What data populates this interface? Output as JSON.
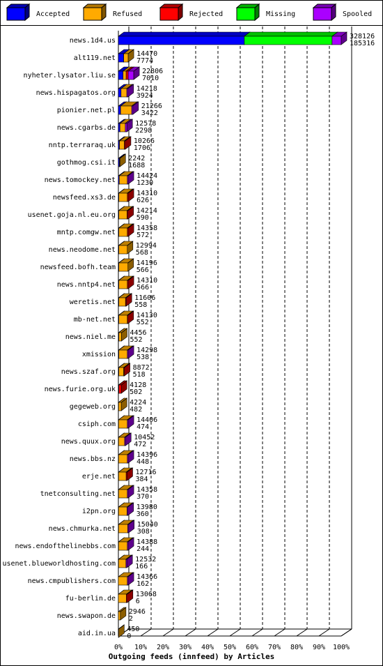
{
  "chart_data": {
    "type": "bar",
    "orientation": "horizontal",
    "stacked": true,
    "title": "Outgoing feeds (innfeed) by Articles",
    "categories": [
      "news.1d4.us",
      "alt119.net",
      "nyheter.lysator.liu.se",
      "news.hispagatos.org",
      "pionier.net.pl",
      "news.cgarbs.de",
      "nntp.terraraq.uk",
      "gothmog.csi.it",
      "news.tomockey.net",
      "newsfeed.xs3.de",
      "usenet.goja.nl.eu.org",
      "mntp.comgw.net",
      "news.neodome.net",
      "newsfeed.bofh.team",
      "news.nntp4.net",
      "weretis.net",
      "mb-net.net",
      "news.niel.me",
      "xmission",
      "news.szaf.org",
      "news.furie.org.uk",
      "gegeweb.org",
      "csiph.com",
      "news.quux.org",
      "news.bbs.nz",
      "erje.net",
      "tnetconsulting.net",
      "i2pn.org",
      "news.chmurka.net",
      "news.endofthelinebbs.com",
      "usenet.blueworldhosting.com",
      "news.cmpublishers.com",
      "fu-berlin.de",
      "news.swapon.de",
      "aid.in.ua"
    ],
    "series": [
      {
        "name": "Accepted",
        "color": "#0000ff",
        "values": [
          56.5,
          2.4,
          2.1,
          1.2,
          1.0,
          0.7,
          0.5,
          0.5,
          0.4,
          0.2,
          0.2,
          0.2,
          0.2,
          0.2,
          0.2,
          0.2,
          0.2,
          0.2,
          0.2,
          0.2,
          0.2,
          0.1,
          0.1,
          0.1,
          0.1,
          0.1,
          0.1,
          0.1,
          0.1,
          0.1,
          0.1,
          0,
          0,
          0,
          0
        ]
      },
      {
        "name": "Refused",
        "color": "#ffaa00",
        "values": [
          0,
          2.0,
          1.4,
          2.6,
          5.0,
          2.4,
          2.2,
          0.2,
          3.6,
          3.8,
          3.7,
          3.8,
          3.8,
          4.1,
          3.8,
          3.0,
          3.8,
          1.2,
          3.8,
          2.2,
          0,
          1.2,
          3.9,
          2.7,
          3.9,
          3.4,
          3.9,
          3.8,
          4.1,
          3.9,
          3.3,
          4.0,
          3.6,
          0.9,
          0.1
        ]
      },
      {
        "name": "Rejected",
        "color": "#ff0000",
        "values": [
          0,
          0,
          0.9,
          0,
          0,
          0,
          0.4,
          0,
          0,
          0.4,
          0.4,
          0.4,
          0,
          0,
          0.4,
          0.3,
          0.3,
          0,
          0,
          0.3,
          1.1,
          0,
          0,
          0,
          0,
          0.4,
          0,
          0,
          0,
          0,
          0,
          0,
          0.4,
          0,
          0
        ]
      },
      {
        "name": "Missing",
        "color": "#00ff00",
        "values": [
          39.4,
          0,
          0,
          0,
          0,
          0,
          0,
          0,
          0,
          0,
          0,
          0,
          0,
          0,
          0,
          0,
          0,
          0,
          0,
          0,
          0,
          0,
          0,
          0,
          0,
          0,
          0,
          0,
          0,
          0,
          0,
          0,
          0,
          0,
          0
        ]
      },
      {
        "name": "Spooled",
        "color": "#aa00ff",
        "values": [
          4.1,
          0,
          2.5,
          0.5,
          0.5,
          0.7,
          0,
          0,
          0.4,
          0,
          0,
          0,
          0,
          0,
          0,
          0,
          0,
          0,
          0.4,
          0,
          0,
          0,
          0.4,
          0.4,
          0.4,
          0,
          0.4,
          0.4,
          0.4,
          0.4,
          0.4,
          0.4,
          0,
          0,
          0
        ]
      }
    ],
    "offered": [
      328126,
      14470,
      22806,
      14218,
      21266,
      12578,
      10266,
      2242,
      14424,
      14310,
      14214,
      14358,
      12994,
      14196,
      14310,
      11606,
      14130,
      4456,
      14298,
      8872,
      4128,
      4224,
      14406,
      10452,
      14396,
      12716,
      14358,
      13980,
      15040,
      14388,
      12532,
      14366,
      13068,
      2946,
      450
    ],
    "accepted_count": [
      185316,
      7774,
      7010,
      3924,
      3422,
      2298,
      1706,
      1688,
      1230,
      626,
      590,
      572,
      568,
      566,
      566,
      558,
      552,
      552,
      538,
      518,
      502,
      482,
      474,
      472,
      448,
      384,
      370,
      360,
      308,
      244,
      166,
      162,
      6,
      2,
      0
    ],
    "xlim": [
      0,
      100
    ],
    "xticks": [
      {
        "value": 0,
        "label": "0%"
      },
      {
        "value": 10,
        "label": "10%"
      },
      {
        "value": 20,
        "label": "20%"
      },
      {
        "value": 30,
        "label": "30%"
      },
      {
        "value": 40,
        "label": "40%"
      },
      {
        "value": 50,
        "label": "50%"
      },
      {
        "value": 60,
        "label": "60%"
      },
      {
        "value": 70,
        "label": "70%"
      },
      {
        "value": 80,
        "label": "80%"
      },
      {
        "value": 90,
        "label": "90%"
      },
      {
        "value": 100,
        "label": "100%"
      }
    ],
    "grid": true
  }
}
